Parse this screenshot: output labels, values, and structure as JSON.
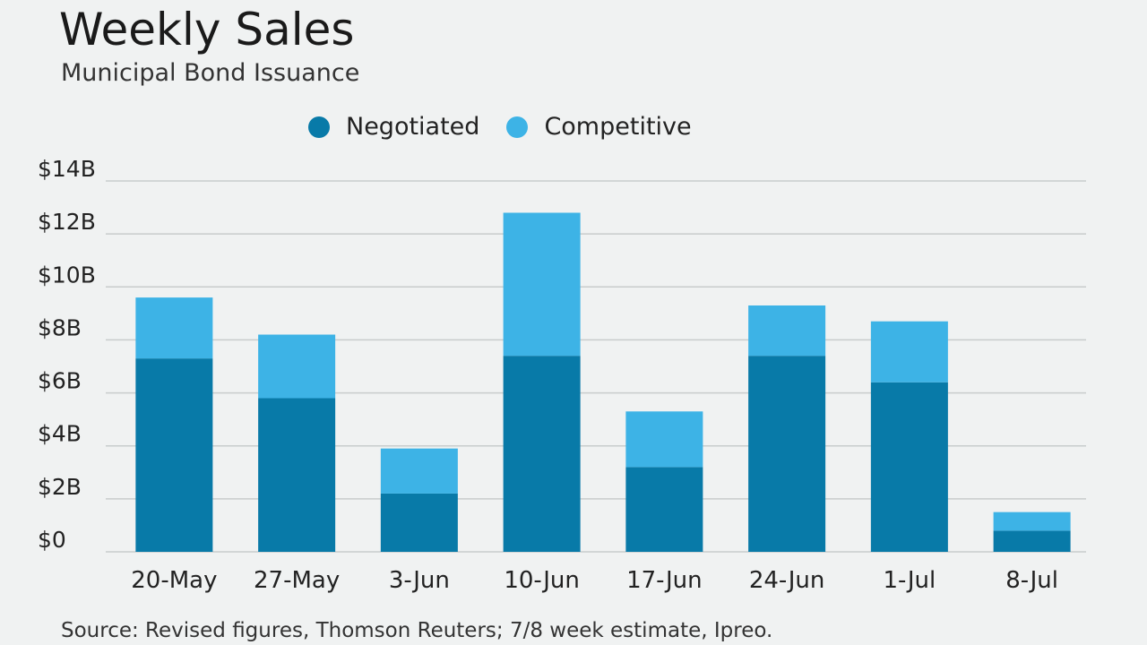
{
  "title": "Weekly Sales",
  "subtitle": "Municipal Bond Issuance",
  "source": "Source: Revised figures, Thomson Reuters; 7/8 week estimate, Ipreo.",
  "colors": {
    "negotiated": "#087aa8",
    "competitive": "#3db3e6",
    "grid": "#c8cccc",
    "text": "#222222"
  },
  "chart_data": {
    "type": "bar",
    "stacked": true,
    "categories": [
      "20-May",
      "27-May",
      "3-Jun",
      "10-Jun",
      "17-Jun",
      "24-Jun",
      "1-Jul",
      "8-Jul"
    ],
    "series": [
      {
        "name": "Negotiated",
        "color": "#087aa8",
        "values": [
          7.3,
          5.8,
          2.2,
          7.4,
          3.2,
          7.4,
          6.4,
          0.8
        ]
      },
      {
        "name": "Competitive",
        "color": "#3db3e6",
        "values": [
          2.3,
          2.4,
          1.7,
          5.4,
          2.1,
          1.9,
          2.3,
          0.7
        ]
      }
    ],
    "ylim": [
      0,
      14
    ],
    "yticks": [
      0,
      2,
      4,
      6,
      8,
      10,
      12,
      14
    ],
    "ytick_labels": [
      "$0",
      "$2B",
      "$4B",
      "$6B",
      "$8B",
      "$10B",
      "$12B",
      "$14B"
    ],
    "grid": true,
    "legend": "top-center",
    "xlabel": "",
    "ylabel": ""
  }
}
